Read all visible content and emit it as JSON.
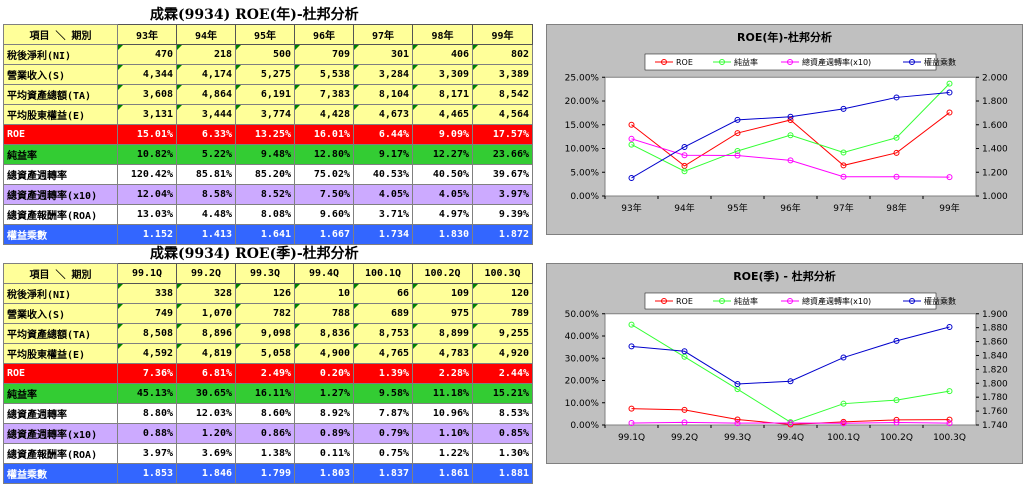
{
  "tables": [
    {
      "title": "成霖(9934) ROE(年)-杜邦分析",
      "corner_label": "項目 ＼ 期別",
      "periods": [
        "93年",
        "94年",
        "95年",
        "96年",
        "97年",
        "98年",
        "99年"
      ],
      "rows": [
        {
          "label": "稅後淨利(NI)",
          "style": "yellow",
          "values": [
            "470",
            "218",
            "500",
            "709",
            "301",
            "406",
            "802"
          ]
        },
        {
          "label": "營業收入(S)",
          "style": "yellow",
          "values": [
            "4,344",
            "4,174",
            "5,275",
            "5,538",
            "3,284",
            "3,309",
            "3,389"
          ]
        },
        {
          "label": "平均資產總額(TA)",
          "style": "yellow",
          "values": [
            "3,608",
            "4,864",
            "6,191",
            "7,383",
            "8,104",
            "8,171",
            "8,542"
          ]
        },
        {
          "label": "平均股東權益(E)",
          "style": "yellow",
          "values": [
            "3,131",
            "3,444",
            "3,774",
            "4,428",
            "4,673",
            "4,465",
            "4,564"
          ]
        },
        {
          "label": "ROE",
          "style": "red",
          "values": [
            "15.01%",
            "6.33%",
            "13.25%",
            "16.01%",
            "6.44%",
            "9.09%",
            "17.57%"
          ]
        },
        {
          "label": "純益率",
          "style": "green",
          "values": [
            "10.82%",
            "5.22%",
            "9.48%",
            "12.80%",
            "9.17%",
            "12.27%",
            "23.66%"
          ]
        },
        {
          "label": "總資產週轉率",
          "style": "white",
          "values": [
            "120.42%",
            "85.81%",
            "85.20%",
            "75.02%",
            "40.53%",
            "40.50%",
            "39.67%"
          ]
        },
        {
          "label": "總資產週轉率(x10)",
          "style": "purple",
          "values": [
            "12.04%",
            "8.58%",
            "8.52%",
            "7.50%",
            "4.05%",
            "4.05%",
            "3.97%"
          ]
        },
        {
          "label": "總資產報酬率(ROA)",
          "style": "white",
          "values": [
            "13.03%",
            "4.48%",
            "8.08%",
            "9.60%",
            "3.71%",
            "4.97%",
            "9.39%"
          ]
        },
        {
          "label": "權益乘數",
          "style": "blue",
          "values": [
            "1.152",
            "1.413",
            "1.641",
            "1.667",
            "1.734",
            "1.830",
            "1.872"
          ]
        }
      ]
    },
    {
      "title": "成霖(9934) ROE(季)-杜邦分析",
      "corner_label": "項目 ＼ 期別",
      "periods": [
        "99.1Q",
        "99.2Q",
        "99.3Q",
        "99.4Q",
        "100.1Q",
        "100.2Q",
        "100.3Q"
      ],
      "rows": [
        {
          "label": "稅後淨利(NI)",
          "style": "yellow",
          "values": [
            "338",
            "328",
            "126",
            "10",
            "66",
            "109",
            "120"
          ]
        },
        {
          "label": "營業收入(S)",
          "style": "yellow",
          "values": [
            "749",
            "1,070",
            "782",
            "788",
            "689",
            "975",
            "789"
          ]
        },
        {
          "label": "平均資產總額(TA)",
          "style": "yellow",
          "values": [
            "8,508",
            "8,896",
            "9,098",
            "8,836",
            "8,753",
            "8,899",
            "9,255"
          ]
        },
        {
          "label": "平均股東權益(E)",
          "style": "yellow",
          "values": [
            "4,592",
            "4,819",
            "5,058",
            "4,900",
            "4,765",
            "4,783",
            "4,920"
          ]
        },
        {
          "label": "ROE",
          "style": "red",
          "values": [
            "7.36%",
            "6.81%",
            "2.49%",
            "0.20%",
            "1.39%",
            "2.28%",
            "2.44%"
          ]
        },
        {
          "label": "純益率",
          "style": "green",
          "values": [
            "45.13%",
            "30.65%",
            "16.11%",
            "1.27%",
            "9.58%",
            "11.18%",
            "15.21%"
          ]
        },
        {
          "label": "總資產週轉率",
          "style": "white",
          "values": [
            "8.80%",
            "12.03%",
            "8.60%",
            "8.92%",
            "7.87%",
            "10.96%",
            "8.53%"
          ]
        },
        {
          "label": "總資產週轉率(x10)",
          "style": "purple",
          "values": [
            "0.88%",
            "1.20%",
            "0.86%",
            "0.89%",
            "0.79%",
            "1.10%",
            "0.85%"
          ]
        },
        {
          "label": "總資產報酬率(ROA)",
          "style": "white",
          "values": [
            "3.97%",
            "3.69%",
            "1.38%",
            "0.11%",
            "0.75%",
            "1.22%",
            "1.30%"
          ]
        },
        {
          "label": "權益乘數",
          "style": "blue",
          "values": [
            "1.853",
            "1.846",
            "1.799",
            "1.803",
            "1.837",
            "1.861",
            "1.881"
          ]
        }
      ]
    }
  ],
  "chart_data": [
    {
      "type": "line",
      "title": "ROE(年)-杜邦分析",
      "categories": [
        "93年",
        "94年",
        "95年",
        "96年",
        "97年",
        "98年",
        "99年"
      ],
      "y_left": {
        "min": 0,
        "max": 25,
        "step": 5,
        "ticks": [
          "0.00%",
          "5.00%",
          "10.00%",
          "15.00%",
          "20.00%",
          "25.00%"
        ]
      },
      "y_right": {
        "min": 1.0,
        "max": 2.0,
        "step": 0.2,
        "ticks": [
          "1.000",
          "1.200",
          "1.400",
          "1.600",
          "1.800",
          "2.000"
        ]
      },
      "legend_position": "top",
      "series": [
        {
          "name": "ROE",
          "color": "#ff0000",
          "axis": "left",
          "values": [
            15.01,
            6.33,
            13.25,
            16.01,
            6.44,
            9.09,
            17.57
          ]
        },
        {
          "name": "純益率",
          "color": "#33ff33",
          "axis": "left",
          "values": [
            10.82,
            5.22,
            9.48,
            12.8,
            9.17,
            12.27,
            23.66
          ]
        },
        {
          "name": "總資產週轉率(x10)",
          "color": "#ff00ff",
          "axis": "left",
          "values": [
            12.04,
            8.58,
            8.52,
            7.5,
            4.05,
            4.05,
            3.97
          ]
        },
        {
          "name": "權益乘數",
          "color": "#0000cc",
          "axis": "right",
          "values": [
            1.152,
            1.413,
            1.641,
            1.667,
            1.734,
            1.83,
            1.872
          ]
        }
      ]
    },
    {
      "type": "line",
      "title": "ROE(季) - 杜邦分析",
      "categories": [
        "99.1Q",
        "99.2Q",
        "99.3Q",
        "99.4Q",
        "100.1Q",
        "100.2Q",
        "100.3Q"
      ],
      "y_left": {
        "min": 0,
        "max": 50,
        "step": 10,
        "ticks": [
          "0.00%",
          "10.00%",
          "20.00%",
          "30.00%",
          "40.00%",
          "50.00%"
        ]
      },
      "y_right": {
        "min": 1.74,
        "max": 1.9,
        "step": 0.02,
        "ticks": [
          "1.740",
          "1.760",
          "1.780",
          "1.800",
          "1.820",
          "1.840",
          "1.860",
          "1.880",
          "1.900"
        ]
      },
      "legend_position": "top",
      "series": [
        {
          "name": "ROE",
          "color": "#ff0000",
          "axis": "left",
          "values": [
            7.36,
            6.81,
            2.49,
            0.2,
            1.39,
            2.28,
            2.44
          ]
        },
        {
          "name": "純益率",
          "color": "#33ff33",
          "axis": "left",
          "values": [
            45.13,
            30.65,
            16.11,
            1.27,
            9.58,
            11.18,
            15.21
          ]
        },
        {
          "name": "總資產週轉率(x10)",
          "color": "#ff00ff",
          "axis": "left",
          "values": [
            0.88,
            1.2,
            0.86,
            0.89,
            0.79,
            1.1,
            0.85
          ]
        },
        {
          "name": "權益乘數",
          "color": "#0000cc",
          "axis": "right",
          "values": [
            1.853,
            1.846,
            1.799,
            1.803,
            1.837,
            1.861,
            1.881
          ]
        }
      ]
    }
  ]
}
